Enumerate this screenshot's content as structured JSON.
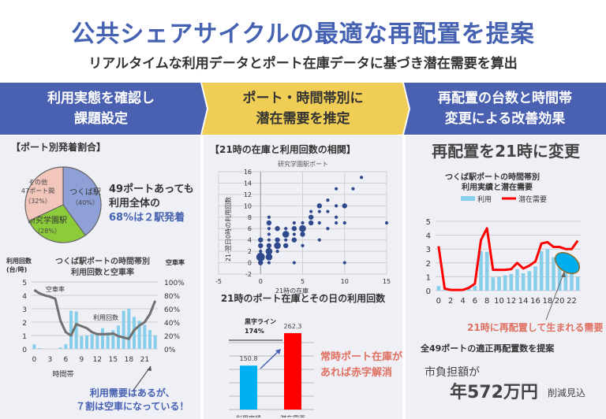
{
  "title": "公共シェアサイクルの最適な再配置を提案",
  "subtitle": "リアルタイムな利用データとポート在庫データに基づき潜在需要を算出",
  "steps": [
    {
      "line1": "利用実態を確認し",
      "line2": "課題設定"
    },
    {
      "line1": "ポート・時間帯別に",
      "line2": "潜在需要を推定"
    },
    {
      "line1": "再配置の台数と時間帯",
      "line2": "変更による改善効果"
    }
  ],
  "left": {
    "pie_heading": "【ポート別発着割合】",
    "pie_note": [
      "49ポートあっても",
      "利用全体の",
      "68%は２駅発着"
    ],
    "note_color": "#4561b1",
    "chart2_note": [
      "利用需要はあるが、",
      "７割は空車になっている！"
    ]
  },
  "middle": {
    "heading": "【21時の在庫と利用回数の相関】",
    "scatter_caption": "21時のポート在庫とその日の利用回数",
    "bar_note": [
      "常時ポート在庫が",
      "あれば赤字解消"
    ],
    "note_color": "#e07060"
  },
  "right": {
    "heading": "再配置を21時に変更",
    "callout": "21時に再配置して生まれる需要",
    "proposal": "全49ポートの適正再配置数を提案",
    "burden_label": "市負担額が",
    "amount": "年572万円",
    "reduction": "削減見込"
  },
  "chart_data": [
    {
      "type": "pie",
      "labels": [
        "つくば駅",
        "研究学園駅",
        "その他47ポート間"
      ],
      "percent_labels": [
        "（40%）",
        "（28%）",
        "（32%）"
      ],
      "values": [
        40,
        28,
        32
      ],
      "colors": [
        "#8fa0d6",
        "#8ccc3a",
        "#f3c6bc"
      ]
    },
    {
      "type": "bar+line",
      "title": [
        "つくば駅ポートの時間帯別",
        "利用回数と空車率"
      ],
      "ylabel": [
        "利用回数",
        "(台/時)"
      ],
      "y2label": "空車率",
      "xlabel": "時間帯",
      "x": [
        0,
        1,
        2,
        3,
        4,
        5,
        6,
        7,
        8,
        9,
        10,
        11,
        12,
        13,
        14,
        15,
        16,
        17,
        18,
        19,
        20,
        21,
        22,
        23
      ],
      "xticks": [
        "0",
        "3",
        "6",
        "9",
        "12",
        "15",
        "18",
        "21"
      ],
      "yticks": [
        "0",
        "1",
        "2",
        "3",
        "4",
        "5"
      ],
      "y2ticks": [
        "0%",
        "20%",
        "40%",
        "60%",
        "80%",
        "100%"
      ],
      "ylim": [
        0,
        5
      ],
      "y2lim": [
        0,
        100
      ],
      "series": [
        {
          "name": "利用回数",
          "type": "bar",
          "values": [
            0.33,
            0.05,
            0,
            0,
            0,
            0.1,
            0.35,
            2.85,
            2.8,
            0.95,
            1.0,
            1.1,
            1.2,
            1.55,
            1.25,
            1.4,
            1.75,
            2.85,
            3.0,
            2.4,
            2.1,
            1.8,
            1.4,
            1.0
          ]
        },
        {
          "name": "空車率",
          "type": "line",
          "values": [
            88,
            83,
            80,
            78,
            75,
            42,
            25,
            20,
            37,
            34,
            31,
            25,
            22,
            22,
            22,
            23,
            19,
            17,
            15,
            28,
            35,
            40,
            52,
            72
          ]
        }
      ]
    },
    {
      "type": "scatter",
      "title": "研究学園駅ポート",
      "xlabel": "21時の在庫",
      "ylabel": "21-翌日0時の利用回数",
      "xlim": [
        -5,
        15
      ],
      "ylim": [
        -2,
        16
      ],
      "xticks": [
        "-5",
        "0",
        "5",
        "10",
        "15"
      ],
      "yticks": [
        "-2",
        "0",
        "2",
        "4",
        "6",
        "8",
        "10",
        "12",
        "14",
        "16"
      ],
      "points": [
        [
          0,
          0,
          2
        ],
        [
          0,
          1,
          4
        ],
        [
          0,
          2,
          1
        ],
        [
          0,
          3,
          2
        ],
        [
          0,
          4,
          2
        ],
        [
          1,
          0,
          1
        ],
        [
          1,
          1,
          3
        ],
        [
          1,
          2,
          3
        ],
        [
          1,
          3,
          2
        ],
        [
          1,
          4,
          1
        ],
        [
          1,
          5,
          1
        ],
        [
          1,
          6,
          1
        ],
        [
          1,
          7,
          2
        ],
        [
          1,
          8,
          1
        ],
        [
          2,
          2,
          1
        ],
        [
          2,
          3,
          3
        ],
        [
          2,
          4,
          2
        ],
        [
          2,
          6,
          2
        ],
        [
          3,
          3,
          2
        ],
        [
          3,
          4,
          1
        ],
        [
          3,
          5,
          3
        ],
        [
          3,
          6,
          1
        ],
        [
          4,
          0,
          1
        ],
        [
          4,
          4,
          2
        ],
        [
          4,
          5,
          1
        ],
        [
          4,
          6,
          2
        ],
        [
          4,
          7,
          1
        ],
        [
          5,
          3,
          1
        ],
        [
          5,
          5,
          2
        ],
        [
          5,
          6,
          3
        ],
        [
          5,
          7,
          1
        ],
        [
          6,
          7,
          2
        ],
        [
          6,
          8,
          2
        ],
        [
          6,
          9,
          1
        ],
        [
          7,
          4,
          1
        ],
        [
          7,
          7,
          1
        ],
        [
          7,
          9,
          1
        ],
        [
          7,
          10,
          2
        ],
        [
          8,
          6,
          1
        ],
        [
          8,
          9,
          1
        ],
        [
          8,
          11,
          1
        ],
        [
          9,
          7,
          1
        ],
        [
          9,
          8,
          1
        ],
        [
          9,
          10,
          1
        ],
        [
          9,
          13,
          1
        ],
        [
          10,
          0,
          1
        ],
        [
          10,
          7,
          1
        ],
        [
          10,
          10,
          2
        ],
        [
          11,
          13,
          1
        ],
        [
          12,
          15,
          1
        ],
        [
          15,
          7,
          1
        ]
      ]
    },
    {
      "type": "bar",
      "categories": [
        "利用実績",
        "潜在需要"
      ],
      "values": [
        150.8,
        262.3
      ],
      "value_labels": [
        "150.8",
        "262.3"
      ],
      "colors": [
        "#00b0f0",
        "#ff0000"
      ],
      "reference_line": {
        "label": [
          "黒字ライン",
          "174%"
        ]
      }
    },
    {
      "type": "bar+line",
      "title": [
        "つくば駅ポートの時間帯別",
        "利用実績と潜在需要"
      ],
      "legend": [
        "利用",
        "潜在需要"
      ],
      "ylim": [
        0,
        5
      ],
      "yticks": [
        "0",
        "1",
        "2",
        "3",
        "4",
        "5"
      ],
      "xticks": [
        "0",
        "2",
        "4",
        "6",
        "8",
        "10",
        "12",
        "14",
        "16",
        "18",
        "20",
        "22"
      ],
      "series": [
        {
          "name": "利用",
          "type": "bar",
          "values": [
            0.33,
            0.05,
            0,
            0,
            0,
            0.1,
            0.35,
            2.85,
            2.8,
            0.95,
            1.0,
            1.1,
            1.2,
            1.55,
            1.25,
            1.4,
            1.75,
            2.85,
            3.0,
            2.4,
            2.1,
            1.8,
            1.4,
            1.0
          ]
        },
        {
          "name": "潜在需要",
          "type": "line",
          "values": [
            3.2,
            0.15,
            0.05,
            0.05,
            0.05,
            0.2,
            0.5,
            3.65,
            4.5,
            1.5,
            1.5,
            1.5,
            1.55,
            2.0,
            1.6,
            1.8,
            2.1,
            3.4,
            3.5,
            3.15,
            3.15,
            3.0,
            3.0,
            3.6
          ]
        }
      ]
    }
  ]
}
